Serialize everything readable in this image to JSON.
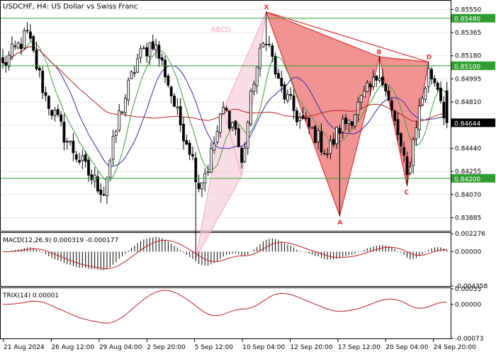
{
  "chart_data": {
    "type": "candlestick",
    "title": "USDCHF, H4:  US Dollar vs Swiss Franc",
    "price_axis": {
      "range": [
        0.8378,
        0.8562
      ],
      "ticks": [
        "0.85550",
        "0.85365",
        "0.85180",
        "0.84995",
        "0.84810",
        "0.84625",
        "0.84440",
        "0.84255",
        "0.84070",
        "0.83885"
      ]
    },
    "current_price_label": "0.84644",
    "current_price": 0.84644,
    "levels": [
      {
        "label": "0.85480",
        "value": 0.8548,
        "color": "#2e9e2e"
      },
      {
        "label": "0.85100",
        "value": 0.851,
        "color": "#2e9e2e"
      },
      {
        "label": "0.84200",
        "value": 0.842,
        "color": "#2e9e2e"
      }
    ],
    "time_labels": [
      "21 Aug 2024",
      "26 Aug 12:00",
      "29 Aug 04:00",
      "2 Sep 20:00",
      "5 Sep 12:00",
      "10 Sep 04:00",
      "12 Sep 20:00",
      "17 Sep 12:00",
      "20 Sep 04:00",
      "24 Sep 20:00"
    ],
    "abcd_pattern": {
      "label": "ABCD",
      "points": [
        {
          "bar": 63,
          "price": 0.8356
        },
        {
          "bar": 72,
          "price": 0.8475
        },
        {
          "bar": 78,
          "price": 0.8422
        },
        {
          "bar": 86,
          "price": 0.8553
        }
      ]
    },
    "harmonic_pattern": {
      "points": [
        {
          "label": "X",
          "bar": 86,
          "price": 0.8553
        },
        {
          "label": "A",
          "bar": 110,
          "price": 0.839
        },
        {
          "label": "B",
          "bar": 123,
          "price": 0.8517
        },
        {
          "label": "C",
          "bar": 132,
          "price": 0.8414
        },
        {
          "label": "D",
          "bar": 139,
          "price": 0.8513
        }
      ]
    },
    "macd": {
      "label": "MACD(12,26,9) 0.000319 -0.000177",
      "ticks": [
        "0.002276",
        "0.00000",
        "-0.004358"
      ],
      "range": [
        -0.00436,
        0.00228
      ]
    },
    "trix": {
      "label": "TRIX(14) 0.00001",
      "ticks": [
        "0.00033",
        "0.00000",
        "-0.00073"
      ],
      "range": [
        -0.00073,
        0.00033
      ]
    },
    "colors": {
      "up_candle": "#ffffff",
      "down_candle": "#000000",
      "sma_fast": "#3a9e3a",
      "sma_mid": "#2a2aa8",
      "sma_slow": "#c01e1e",
      "abcd_fill": "#f7c6d3",
      "xabcd_fill": "#f08080",
      "level_line": "#2e9e2e",
      "grid": "#e6e6e6"
    }
  }
}
